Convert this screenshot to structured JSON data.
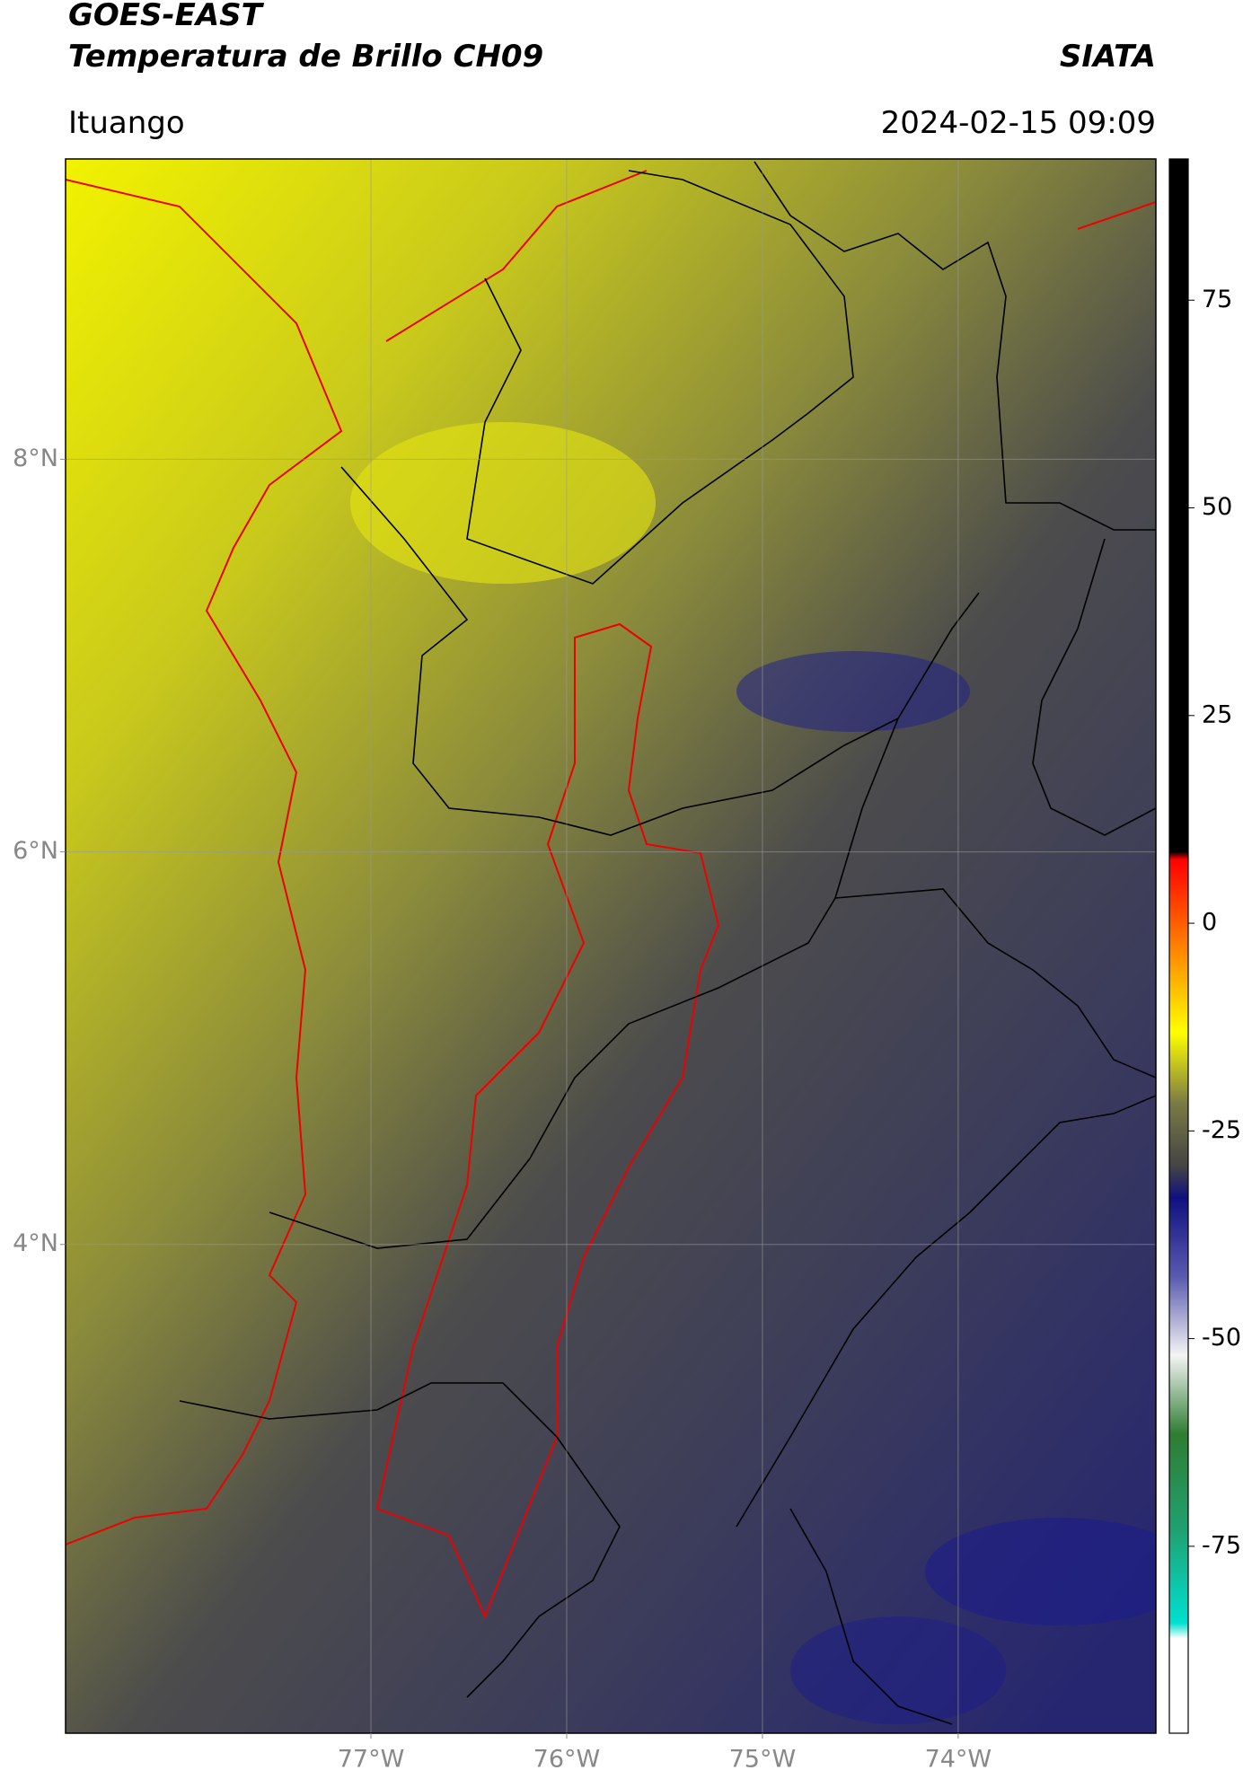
{
  "header": {
    "title": "GOES-EAST",
    "subtitle": "Temperatura de Brillo CH09",
    "source": "SIATA",
    "location": "Ituango",
    "datetime": "2024-02-15 09:09"
  },
  "map": {
    "xlim": [
      -78.56,
      -72.99
    ],
    "ylim": [
      1.51,
      9.53
    ],
    "xticks": [
      {
        "value": -77,
        "label": "77°W"
      },
      {
        "value": -76,
        "label": "76°W"
      },
      {
        "value": -75,
        "label": "75°W"
      },
      {
        "value": -74,
        "label": "74°W"
      }
    ],
    "yticks": [
      {
        "value": 8,
        "label": "8°N"
      },
      {
        "value": 6,
        "label": "6°N"
      },
      {
        "value": 4,
        "label": "4°N"
      }
    ]
  },
  "colorbar": {
    "lim": [
      -97.5,
      92
    ],
    "ticks": [
      75,
      50,
      25,
      0,
      -25,
      -50,
      -75
    ]
  }
}
